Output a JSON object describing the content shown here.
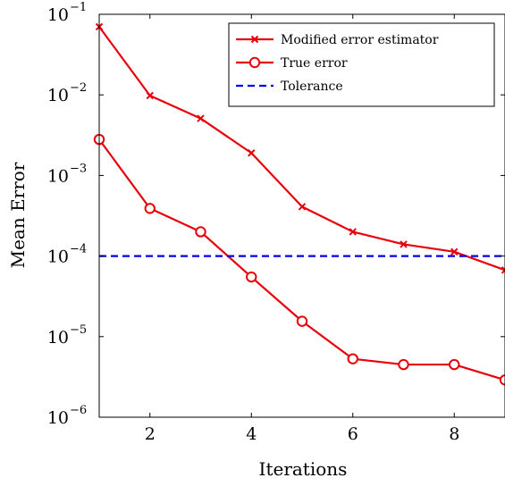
{
  "chart_data": {
    "type": "line",
    "xlabel": "Iterations",
    "ylabel": "Mean Error",
    "xlim": [
      1,
      9
    ],
    "ylim": [
      1e-06,
      0.1
    ],
    "yscale": "log",
    "xticks": [
      2,
      4,
      6,
      8
    ],
    "xtick_labels": [
      "2",
      "4",
      "6",
      "8"
    ],
    "yticks": [
      1e-06,
      1e-05,
      0.0001,
      0.001,
      0.01,
      0.1
    ],
    "ytick_bases": [
      "10",
      "10",
      "10",
      "10",
      "10",
      "10"
    ],
    "ytick_exponents": [
      "−6",
      "−5",
      "−4",
      "−3",
      "−2",
      "−1"
    ],
    "grid": false,
    "legend_position": "top-right",
    "series": [
      {
        "name": "Modified error estimator",
        "color": "#e8000b",
        "marker": "x",
        "x": [
          1,
          2,
          3,
          4,
          5,
          6,
          7,
          8,
          9
        ],
        "y": [
          0.07,
          0.0098,
          0.0051,
          0.0019,
          0.00041,
          0.0002,
          0.00014,
          0.000113,
          6.7e-05
        ]
      },
      {
        "name": "True error",
        "color": "#e8000b",
        "marker": "circle",
        "x": [
          1,
          2,
          3,
          4,
          5,
          6,
          7,
          8,
          9
        ],
        "y": [
          0.0028,
          0.00039,
          0.0002,
          5.5e-05,
          1.55e-05,
          5.3e-06,
          4.5e-06,
          4.5e-06,
          2.9e-06
        ]
      },
      {
        "name": "Tolerance",
        "color": "#0000ee",
        "marker": "none",
        "dashed": true,
        "x": [
          1,
          9
        ],
        "y": [
          0.0001,
          0.0001
        ]
      }
    ]
  }
}
